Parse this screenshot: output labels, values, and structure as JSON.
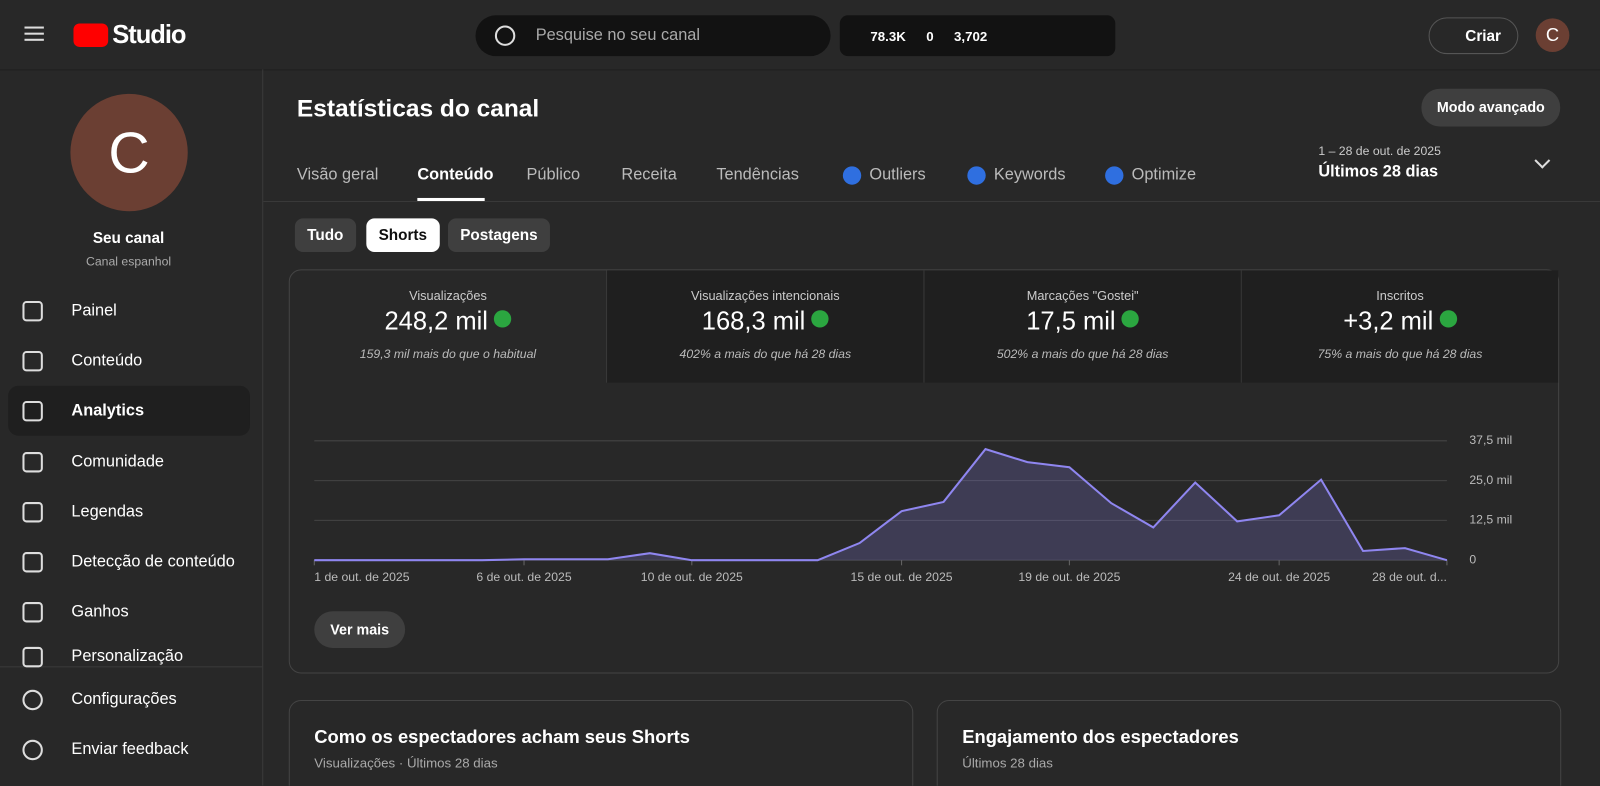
{
  "header": {
    "logo": "Studio",
    "search_placeholder": "Pesquise no seu canal",
    "stats": [
      "78.3K",
      "0",
      "3,702"
    ],
    "create": "Criar",
    "avatar": "C"
  },
  "sidebar": {
    "avatar": "C",
    "channel_name": "Seu canal",
    "channel_subtitle": "Canal espanhol",
    "nav": [
      "Painel",
      "Conteúdo",
      "Analytics",
      "Comunidade",
      "Legendas",
      "Detecção de conteúdo",
      "Ganhos",
      "Personalização"
    ],
    "footer": [
      "Configurações",
      "Enviar feedback"
    ]
  },
  "main": {
    "title": "Estatísticas do canal",
    "advanced": "Modo avançado",
    "tabs": [
      "Visão geral",
      "Conteúdo",
      "Público",
      "Receita",
      "Tendências",
      "Outliers",
      "Keywords",
      "Optimize"
    ],
    "date_range": "1 – 28 de out. de 2025",
    "date_label": "Últimos 28 dias",
    "filters": [
      "Tudo",
      "Shorts",
      "Postagens"
    ],
    "metrics": [
      {
        "label": "Visualizações",
        "value": "248,2 mil",
        "note": "159,3 mil mais do que o habitual"
      },
      {
        "label": "Visualizações intencionais",
        "value": "168,3 mil",
        "note": "402% a mais do que há 28 dias"
      },
      {
        "label": "Marcações \"Gostei\"",
        "value": "17,5 mil",
        "note": "502% a mais do que há 28 dias"
      },
      {
        "label": "Inscritos",
        "value": "+3,2 mil",
        "note": "75% a mais do que há 28 dias"
      }
    ],
    "more": "Ver mais",
    "cards": [
      {
        "title": "Como os espectadores acham seus Shorts",
        "subtitle": "Visualizações · Últimos 28 dias"
      },
      {
        "title": "Engajamento dos espectadores",
        "subtitle": "Últimos 28 dias"
      }
    ]
  },
  "chart_data": {
    "type": "area",
    "color": "#8f86f0",
    "categories": [
      "1 de out. de 2025",
      null,
      null,
      null,
      null,
      "6 de out. de 2025",
      null,
      null,
      null,
      "10 de out. de 2025",
      null,
      null,
      null,
      null,
      "15 de out. de 2025",
      null,
      null,
      null,
      "19 de out. de 2025",
      null,
      null,
      null,
      null,
      "24 de out. de 2025",
      null,
      null,
      null,
      "28 de out. d..."
    ],
    "values": [
      0,
      0,
      0,
      0,
      0,
      300,
      300,
      300,
      2200,
      0,
      0,
      0,
      0,
      5400,
      15400,
      18300,
      34900,
      30800,
      29200,
      17900,
      10300,
      24400,
      12200,
      14100,
      25300,
      2900,
      3800,
      0
    ],
    "ylim": [
      0,
      37500
    ],
    "yticks": [
      0,
      {
        "value": 12500,
        "label": "12,5 mil"
      },
      {
        "value": 25000,
        "label": "25,0 mil"
      },
      {
        "value": 37500,
        "label": "37,5 mil"
      }
    ],
    "grid": true
  }
}
